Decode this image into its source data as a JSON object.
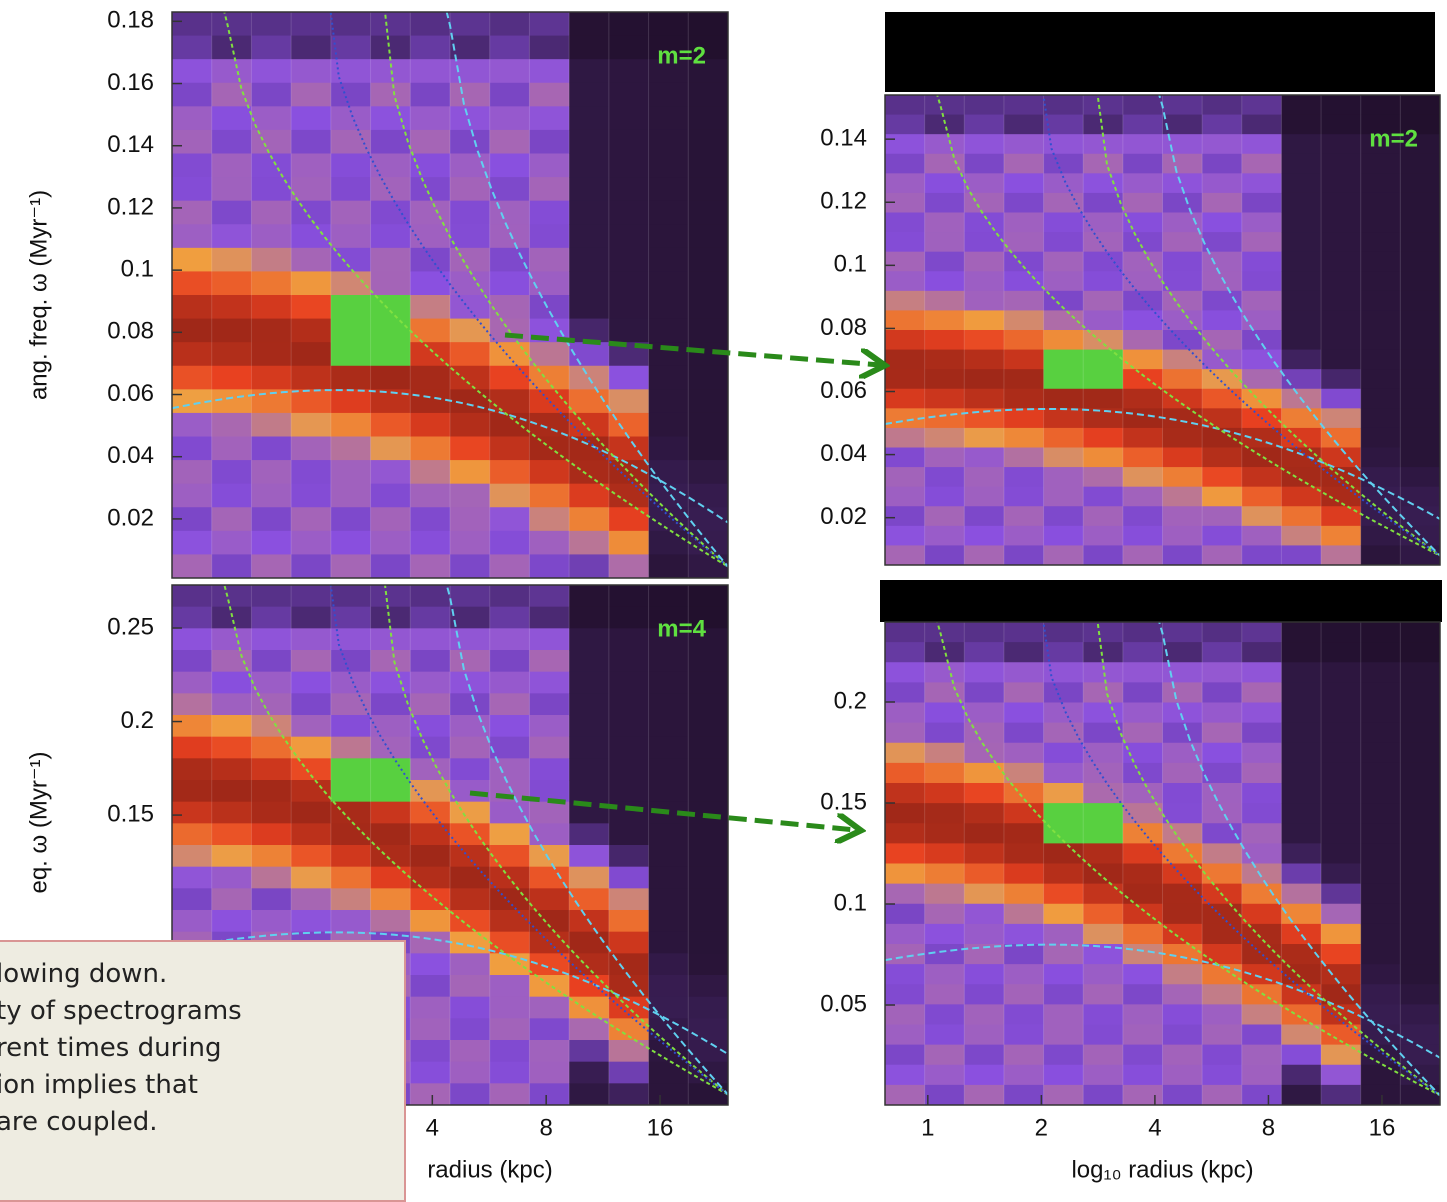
{
  "chart_data": [
    {
      "type": "heatmap",
      "label": "m=2",
      "ylabel": "ang. freq. ω (Myr⁻¹)",
      "xscale": "log",
      "xlim": [
        0.82,
        24.2
      ],
      "xticks": [],
      "ylim": [
        0.001,
        0.183
      ],
      "yticks": [
        0.02,
        0.04,
        0.06,
        0.08,
        0.1,
        0.12,
        0.14,
        0.16,
        0.18
      ]
    },
    {
      "type": "heatmap",
      "label": "m=2",
      "xscale": "log",
      "xlim": [
        0.77,
        22.8
      ],
      "xticks": [],
      "ylim": [
        0.005,
        0.154
      ],
      "yticks": [
        0.02,
        0.04,
        0.06,
        0.08,
        0.1,
        0.12,
        0.14
      ]
    },
    {
      "type": "heatmap",
      "label": "m=4",
      "ylabel": "eq. ω (Myr⁻¹)",
      "xlabel": "radius (kpc)",
      "xscale": "log",
      "xlim": [
        0.82,
        24.2
      ],
      "xticks": [
        4,
        8,
        16
      ],
      "ylim": [
        -0.005,
        0.273
      ],
      "yticks": [
        0.15,
        0.2,
        0.25
      ]
    },
    {
      "type": "heatmap",
      "xlabel": "log₁₀ radius (kpc)",
      "xscale": "log",
      "xlim": [
        0.77,
        22.8
      ],
      "xticks": [
        1,
        2,
        4,
        8,
        16
      ],
      "ylim": [
        0.0005,
        0.2396
      ],
      "yticks": [
        0.05,
        0.1,
        0.15,
        0.2
      ]
    }
  ],
  "note": {
    "lines": [
      "lowing down.",
      "ty of spectrograms",
      "rent times during",
      "ion implies that",
      "are coupled."
    ]
  }
}
